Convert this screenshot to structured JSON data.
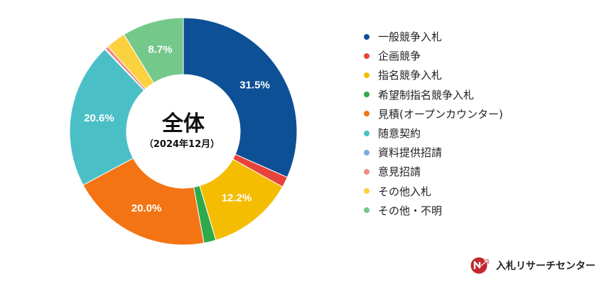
{
  "chart_data": {
    "type": "pie",
    "donut": true,
    "center_title": "全体",
    "center_subtitle": "（2024年12月）",
    "slices": [
      {
        "label": "一般競争入札",
        "value": 31.5,
        "value_label": "31.5%",
        "color": "#0d5096"
      },
      {
        "label": "企画競争",
        "value": 1.5,
        "value_label": "",
        "color": "#e8433b"
      },
      {
        "label": "指名競争入札",
        "value": 12.2,
        "value_label": "12.2%",
        "color": "#f5bd02"
      },
      {
        "label": "希望制指名競争入札",
        "value": 1.7,
        "value_label": "",
        "color": "#2eaa4b"
      },
      {
        "label": "見積(オープンカウンター)",
        "value": 20.0,
        "value_label": "20.0%",
        "color": "#f47414"
      },
      {
        "label": "随意契約",
        "value": 20.6,
        "value_label": "20.6%",
        "color": "#4bbfc6"
      },
      {
        "label": "資料提供招請",
        "value": 0.1,
        "value_label": "",
        "color": "#7ba9e3"
      },
      {
        "label": "意見招請",
        "value": 0.5,
        "value_label": "",
        "color": "#ef8d86"
      },
      {
        "label": "その他入札",
        "value": 2.8,
        "value_label": "",
        "color": "#fbd13f"
      },
      {
        "label": "その他・不明",
        "value": 8.7,
        "value_label": "8.7%",
        "color": "#74c88a"
      }
    ],
    "legend_position": "right"
  },
  "brand": {
    "name": "入札リサーチセンター",
    "icon": "nr-arrow-logo-icon",
    "color": "#c0282d"
  }
}
